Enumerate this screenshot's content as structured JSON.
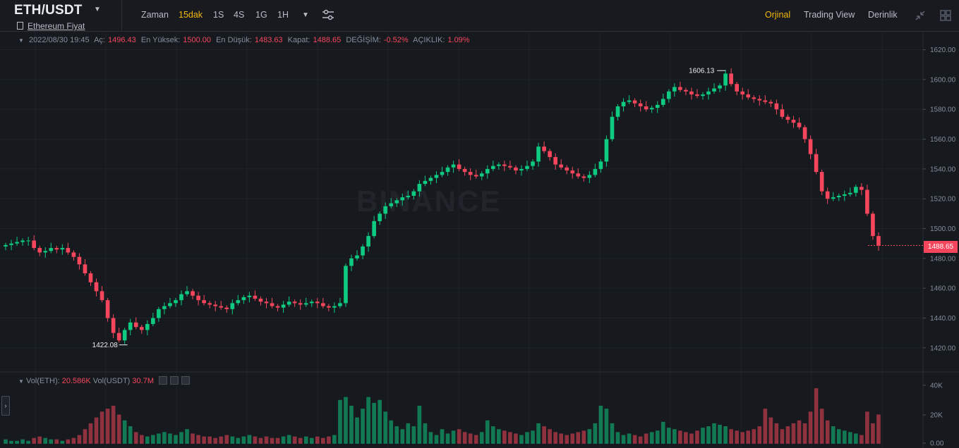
{
  "header": {
    "pair": "ETH/USDT",
    "subtitle": "Ethereum Fiyat",
    "timeframes": [
      "Zaman",
      "15dak",
      "1S",
      "4S",
      "1G",
      "1H"
    ],
    "active_timeframe": "15dak",
    "views": [
      "Orjinal",
      "Trading View",
      "Derinlik"
    ],
    "active_view": "Orjinal"
  },
  "ohlc": {
    "datetime": "2022/08/30 19:45",
    "open_label": "Aç:",
    "open": "1496.43",
    "high_label": "En Yüksek:",
    "high": "1500.00",
    "low_label": "En Düşük:",
    "low": "1483.63",
    "close_label": "Kapat:",
    "close": "1488.65",
    "change_label": "DEĞİŞİM:",
    "change": "-0.52%",
    "amplitude_label": "AÇIKLIK:",
    "amplitude": "1.09%"
  },
  "volume": {
    "eth_label": "Vol(ETH):",
    "eth": "20.586K",
    "usdt_label": "Vol(USDT)",
    "usdt": "30.7M",
    "ticks": [
      "40K",
      "20K",
      "0.00"
    ]
  },
  "watermark": "BINANCE",
  "last_price": "1488.65",
  "colors": {
    "up": "#0ecb81",
    "down": "#f6465d",
    "accent": "#f0b90b",
    "bg": "#161a1e"
  },
  "chart_data": {
    "type": "candlestick",
    "ylim": [
      1410,
      1625
    ],
    "yticks": [
      "1620.00",
      "1600.00",
      "1580.00",
      "1560.00",
      "1540.00",
      "1520.00",
      "1500.00",
      "1480.00",
      "1460.00",
      "1440.00",
      "1420.00"
    ],
    "annotations": {
      "max": "1606.13",
      "min": "1422.08"
    },
    "close_series": [
      1489,
      1490,
      1491,
      1492,
      1492,
      1487,
      1484,
      1485,
      1487,
      1486,
      1487,
      1484,
      1481,
      1476,
      1470,
      1464,
      1458,
      1452,
      1440,
      1430,
      1425,
      1432,
      1437,
      1434,
      1432,
      1436,
      1440,
      1446,
      1448,
      1450,
      1452,
      1456,
      1458,
      1455,
      1452,
      1450,
      1449,
      1448,
      1447,
      1446,
      1450,
      1452,
      1454,
      1455,
      1453,
      1451,
      1450,
      1448,
      1447,
      1449,
      1451,
      1450,
      1449,
      1450,
      1451,
      1450,
      1448,
      1447,
      1448,
      1450,
      1475,
      1480,
      1482,
      1488,
      1495,
      1505,
      1510,
      1515,
      1517,
      1519,
      1521,
      1522,
      1525,
      1530,
      1532,
      1534,
      1536,
      1538,
      1541,
      1543,
      1540,
      1538,
      1536,
      1535,
      1537,
      1540,
      1542,
      1543,
      1542,
      1541,
      1539,
      1540,
      1542,
      1545,
      1555,
      1552,
      1548,
      1543,
      1541,
      1539,
      1537,
      1535,
      1534,
      1536,
      1540,
      1545,
      1560,
      1575,
      1582,
      1585,
      1586,
      1584,
      1582,
      1580,
      1581,
      1583,
      1587,
      1592,
      1595,
      1593,
      1592,
      1590,
      1589,
      1590,
      1592,
      1594,
      1596,
      1604,
      1597,
      1592,
      1590,
      1588,
      1587,
      1586,
      1585,
      1584,
      1580,
      1575,
      1573,
      1571,
      1568,
      1560,
      1550,
      1538,
      1525,
      1520,
      1521,
      1522,
      1523,
      1524,
      1528,
      1526,
      1510,
      1495,
      1488.65
    ],
    "volume_k": [
      3,
      2,
      2,
      3,
      2,
      4,
      5,
      4,
      3,
      3,
      2,
      3,
      4,
      6,
      10,
      14,
      18,
      22,
      24,
      26,
      20,
      16,
      12,
      8,
      6,
      5,
      6,
      7,
      8,
      7,
      6,
      8,
      10,
      7,
      6,
      5,
      5,
      4,
      5,
      6,
      5,
      4,
      5,
      6,
      5,
      4,
      5,
      4,
      4,
      5,
      6,
      5,
      4,
      5,
      4,
      5,
      4,
      5,
      6,
      30,
      32,
      26,
      18,
      24,
      32,
      28,
      30,
      22,
      16,
      12,
      10,
      14,
      12,
      26,
      14,
      8,
      6,
      10,
      7,
      9,
      10,
      8,
      7,
      6,
      8,
      16,
      12,
      10,
      9,
      8,
      7,
      6,
      8,
      9,
      14,
      12,
      10,
      8,
      7,
      6,
      7,
      8,
      9,
      10,
      14,
      26,
      24,
      14,
      8,
      6,
      7,
      6,
      5,
      7,
      8,
      9,
      15,
      11,
      10,
      9,
      8,
      7,
      9,
      11,
      12,
      14,
      13,
      12,
      10,
      9,
      8,
      9,
      10,
      12,
      24,
      18,
      14,
      10,
      12,
      14,
      16,
      14,
      22,
      38,
      24,
      16,
      12,
      10,
      9,
      8,
      7,
      6,
      22,
      14,
      20
    ]
  }
}
